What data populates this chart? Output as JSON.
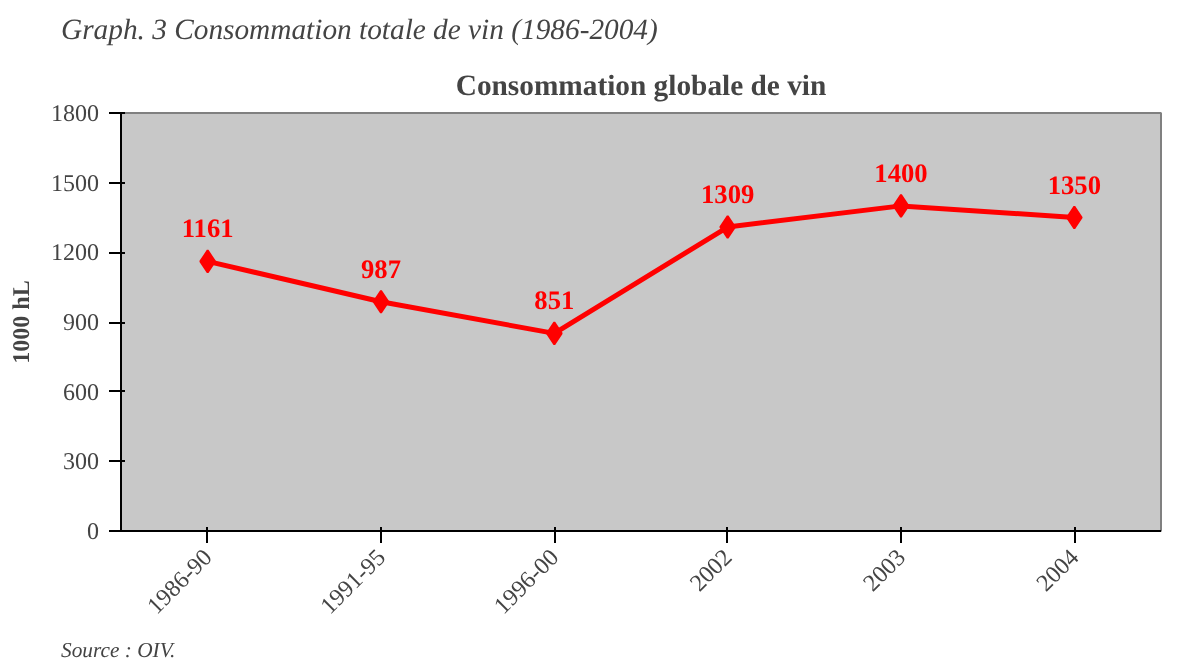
{
  "chart_data": {
    "type": "line",
    "title": "Graph. 3 Consommation totale de vin (1986-2004)",
    "subtitle": "Consommation globale de vin",
    "ylabel": "1000 hL",
    "categories": [
      "1986-90",
      "1991-95",
      "1996-00",
      "2002",
      "2003",
      "2004"
    ],
    "series": [
      {
        "color": "#ff0000",
        "values": [
          1161,
          987,
          851,
          1309,
          1400,
          1350
        ]
      }
    ],
    "ylim": [
      0,
      1800
    ],
    "yticks": [
      0,
      300,
      600,
      900,
      1200,
      1500,
      1800
    ],
    "marker": "diamond",
    "line_style": "solid",
    "data_labels": true,
    "grid": false,
    "annotations": [
      "Source : OIV."
    ]
  }
}
